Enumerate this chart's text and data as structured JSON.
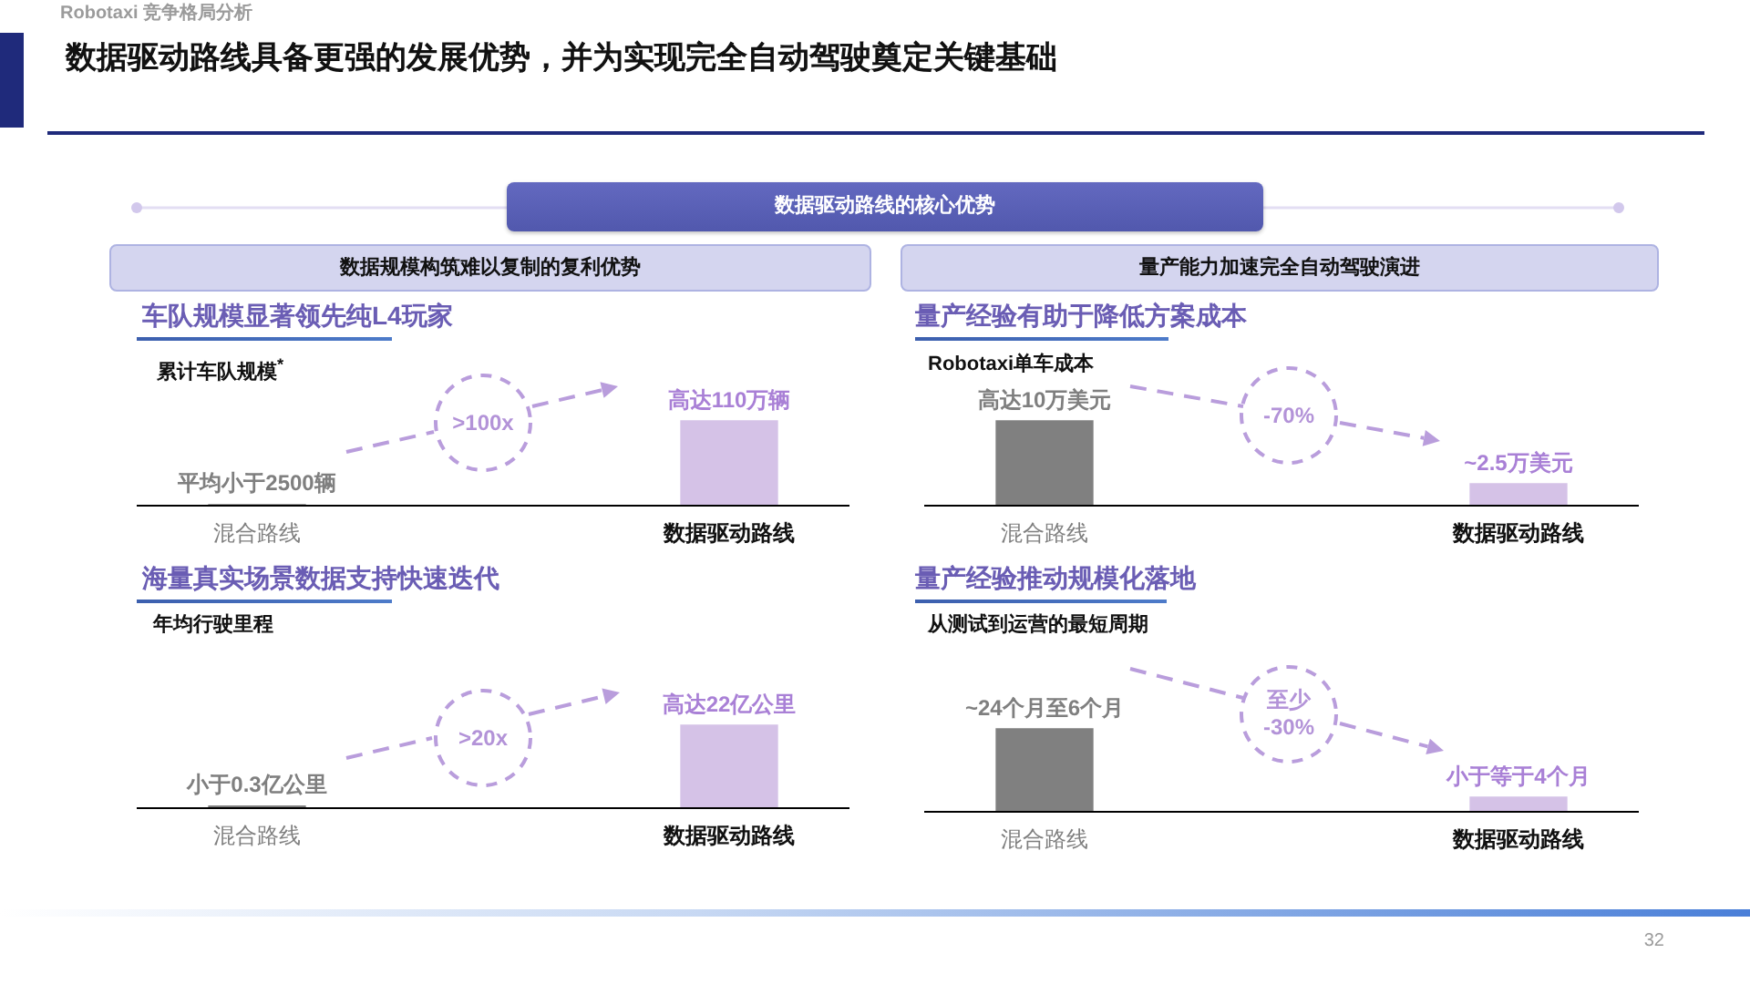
{
  "chart_data": [
    {
      "type": "other",
      "title": "数据驱动路线具备更强的发展优势，并为实现完全自动驾驶奠定关键基础",
      "annotations": [
        "Robotaxi 竞争格局分析",
        "数据驱动路线的核心优势",
        "数据规模构筑难以复制的复利优势",
        "量产能力加速完全自动驾驶演进",
        "32"
      ]
    },
    {
      "type": "bar",
      "title": "车队规模显著领先纯L4玩家",
      "subtitle": "累计车队规模$^{*}$",
      "categories": [
        "混合路线",
        "数据驱动路线"
      ],
      "values": [
        2500,
        1100000
      ],
      "colors": [
        "#808080",
        "#d5c2e7"
      ],
      "value_labels": [
        "平均小于2500辆",
        "高达110万辆"
      ],
      "annotations": [
        ">100x"
      ]
    },
    {
      "type": "bar",
      "title": "量产经验有助于降低方案成本",
      "subtitle": "Robotaxi单车成本",
      "categories": [
        "混合路线",
        "数据驱动路线"
      ],
      "values": [
        10,
        2.5
      ],
      "colors": [
        "#808080",
        "#d5c2e7"
      ],
      "value_labels": [
        "高达10万美元",
        "~2.5万美元"
      ],
      "annotations": [
        "-70%"
      ]
    },
    {
      "type": "bar",
      "title": "海量真实场景数据支持快速迭代",
      "subtitle": "年均行驶里程",
      "categories": [
        "混合路线",
        "数据驱动路线"
      ],
      "values": [
        0.3,
        22
      ],
      "colors": [
        "#808080",
        "#d5c2e7"
      ],
      "value_labels": [
        "小于0.3亿公里",
        "高达22亿公里"
      ],
      "annotations": [
        ">20x"
      ]
    },
    {
      "type": "bar",
      "title": "量产经验推动规模化落地",
      "subtitle": "从测试到运营的最短周期",
      "categories": [
        "混合路线",
        "数据驱动路线"
      ],
      "values": [
        24,
        4
      ],
      "colors": [
        "#808080",
        "#d5c2e7"
      ],
      "value_labels": [
        "~24个月至6个月",
        "小于等于4个月"
      ],
      "annotations": [
        "至少",
        "-30%"
      ]
    }
  ]
}
